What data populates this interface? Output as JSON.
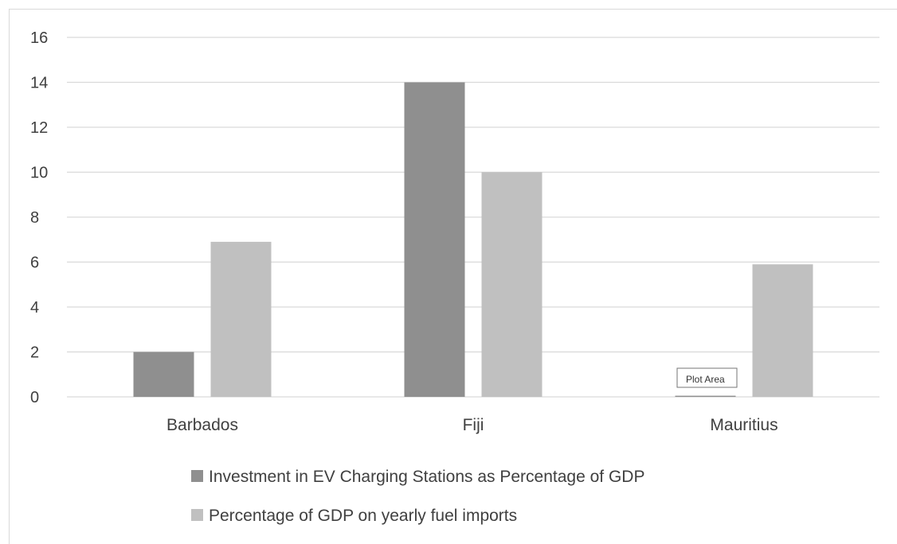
{
  "chart_data": {
    "type": "bar",
    "title": "",
    "xlabel": "",
    "ylabel": "",
    "categories": [
      "Barbados",
      "Fiji",
      "Mauritius"
    ],
    "ylim": [
      0,
      16
    ],
    "yticks": [
      0,
      2,
      4,
      6,
      8,
      10,
      12,
      14,
      16
    ],
    "grid": true,
    "legend_position": "bottom",
    "series": [
      {
        "name": "Investment in EV Charging Stations as Percentage of GDP",
        "values": [
          2,
          14,
          0.05
        ],
        "color": "#8f8f8f"
      },
      {
        "name": "Percentage of GDP on yearly fuel imports",
        "values": [
          6.9,
          10,
          5.9
        ],
        "color": "#c0c0c0"
      }
    ]
  },
  "tooltip": {
    "text": "Plot Area"
  },
  "colors": {
    "gridline": "#d9d9d9",
    "text": "#404040",
    "frame": "#d9d9d9"
  }
}
